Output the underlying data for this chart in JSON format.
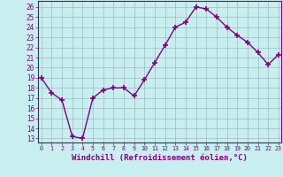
{
  "x": [
    0,
    1,
    2,
    3,
    4,
    5,
    6,
    7,
    8,
    9,
    10,
    11,
    12,
    13,
    14,
    15,
    16,
    17,
    18,
    19,
    20,
    21,
    22,
    23
  ],
  "y": [
    19.0,
    17.5,
    16.8,
    13.2,
    13.0,
    17.0,
    17.8,
    18.0,
    18.0,
    17.2,
    18.8,
    20.5,
    22.2,
    24.0,
    24.5,
    26.0,
    25.8,
    25.0,
    24.0,
    23.2,
    22.5,
    21.5,
    20.3,
    21.3
  ],
  "line_color": "#800080",
  "marker": "+",
  "markersize": 4,
  "markeredgewidth": 1.2,
  "linewidth": 1.0,
  "xlabel": "Windchill (Refroidissement éolien,°C)",
  "xlabel_fontsize": 6.5,
  "xtick_labels": [
    "0",
    "1",
    "2",
    "3",
    "4",
    "5",
    "6",
    "7",
    "8",
    "9",
    "10",
    "11",
    "12",
    "13",
    "14",
    "15",
    "16",
    "17",
    "18",
    "19",
    "20",
    "21",
    "22",
    "23"
  ],
  "ytick_min": 13,
  "ytick_max": 26,
  "ytick_step": 1,
  "ylim": [
    12.6,
    26.6
  ],
  "xlim": [
    -0.3,
    23.3
  ],
  "bg_color": "#c8eef0",
  "grid_color": "#9bbcbd",
  "tick_color": "#800080",
  "label_color": "#800080",
  "spine_color": "#800080"
}
